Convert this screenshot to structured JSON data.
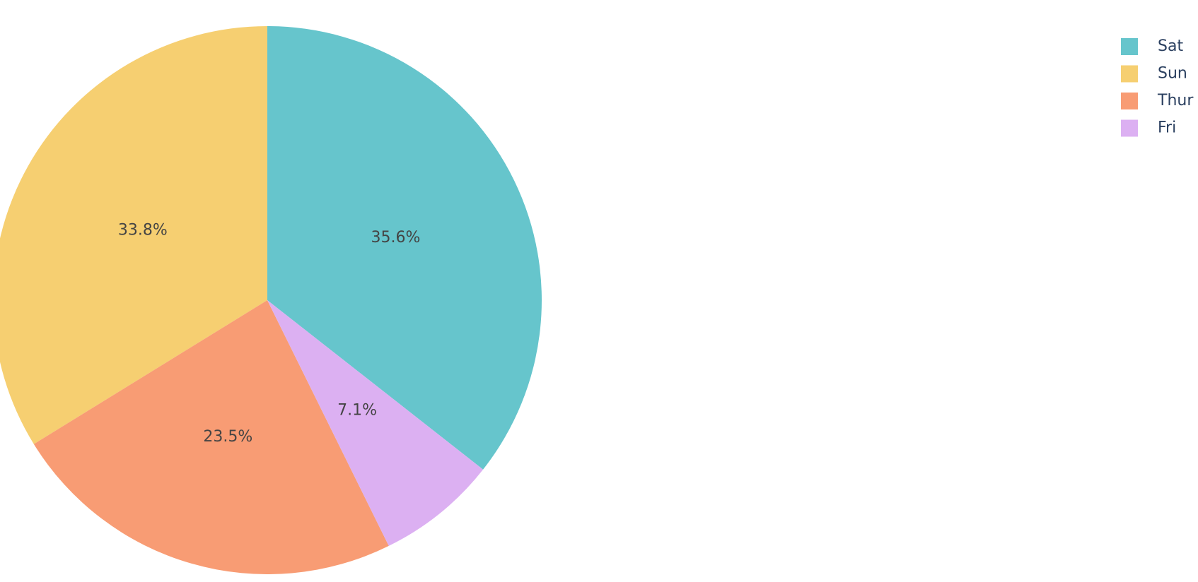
{
  "chart_data": {
    "type": "pie",
    "categories": [
      "Sat",
      "Sun",
      "Thur",
      "Fri"
    ],
    "values": [
      35.6,
      33.8,
      23.5,
      7.1
    ],
    "colors": [
      "#66c5cc",
      "#f6cf71",
      "#f89c74",
      "#dcb0f2"
    ],
    "value_labels": [
      "35.6%",
      "33.8%",
      "23.5%",
      "7.1%"
    ],
    "legend": "top-right"
  }
}
